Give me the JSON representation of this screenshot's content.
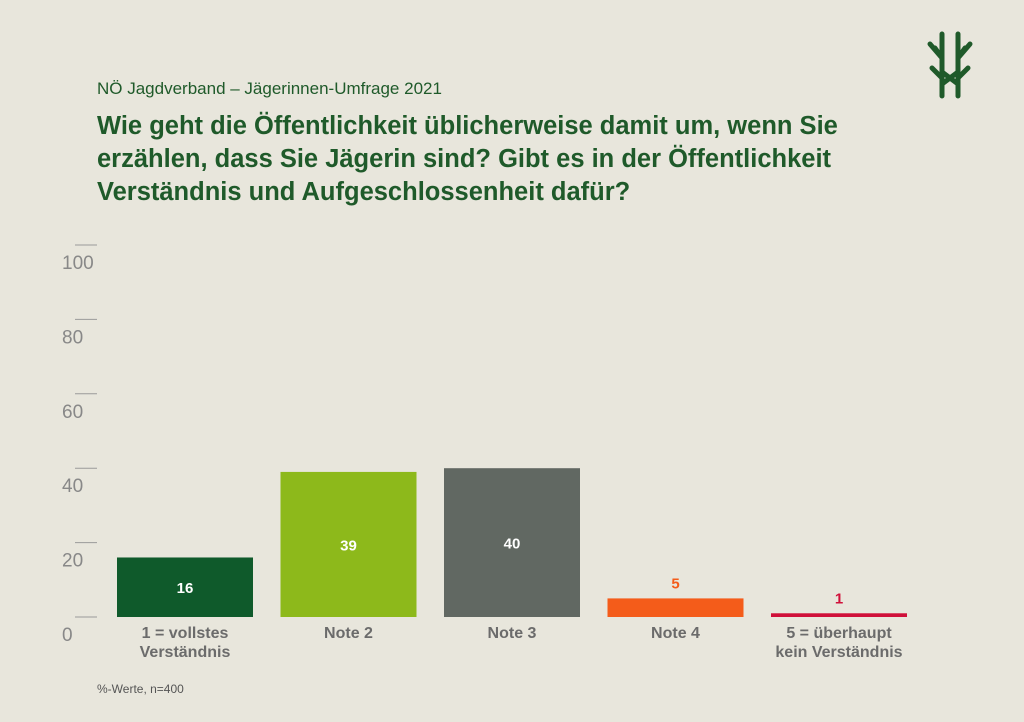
{
  "header": {
    "subtitle": "NÖ Jagdverband – Jägerinnen-Umfrage 2021",
    "title": "Wie geht die Öffentlichkeit üblicherweise damit um, wenn Sie erzählen, dass Sie Jägerin sind? Gibt es in der Öffentlichkeit Verständnis und Aufgeschlossenheit dafür?"
  },
  "footer": {
    "note": "%-Werte, n=400"
  },
  "logo": {
    "icon": "antler-tree-logo-icon",
    "color": "#1f5a2a"
  },
  "chart_data": {
    "type": "bar",
    "categories": [
      [
        "1 = vollstes",
        "Verständnis"
      ],
      [
        "Note 2"
      ],
      [
        "Note 3"
      ],
      [
        "Note 4"
      ],
      [
        "5 = überhaupt",
        "kein Verständnis"
      ]
    ],
    "values": [
      16,
      39,
      40,
      5,
      1
    ],
    "colors": [
      "#0f5a2b",
      "#8db91b",
      "#616862",
      "#f45c1a",
      "#d0103a"
    ],
    "label_colors": [
      "#ffffff",
      "#ffffff",
      "#ffffff",
      "#f45c1a",
      "#d0103a"
    ],
    "label_inside": [
      true,
      true,
      true,
      false,
      false
    ],
    "yticks": [
      0,
      20,
      40,
      60,
      80,
      100
    ],
    "ylim": [
      0,
      100
    ],
    "grid": false
  }
}
